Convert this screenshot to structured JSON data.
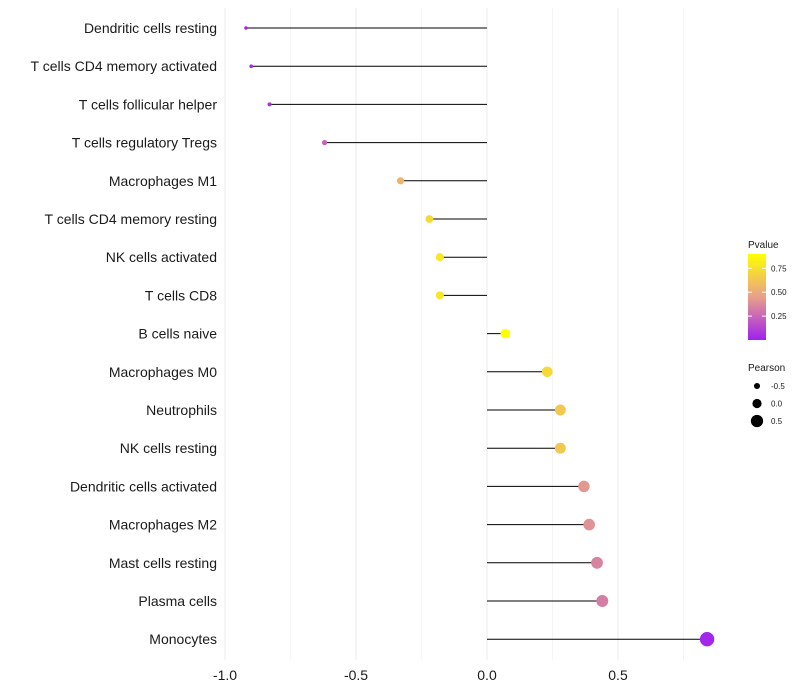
{
  "chart_data": {
    "type": "lollipop",
    "title": "",
    "xlabel": "",
    "ylabel": "",
    "xlim": [
      -1.0,
      0.85
    ],
    "xticks": [
      -1.0,
      -0.5,
      0.0,
      0.5
    ],
    "xtick_labels": [
      "-1.0",
      "-0.5",
      "0.0",
      "0.5"
    ],
    "grid": true,
    "baseline": 0,
    "categories": [
      "Dendritic cells resting",
      "T cells CD4 memory activated",
      "T cells follicular helper",
      "T cells regulatory  Tregs",
      "Macrophages M1",
      "T cells CD4 memory resting",
      "NK cells activated",
      "T cells CD8",
      "B cells naive",
      "Macrophages M0",
      "Neutrophils",
      "NK cells resting",
      "Dendritic cells activated",
      "Macrophages M2",
      "Mast cells resting",
      "Plasma cells",
      "Monocytes"
    ],
    "pearson": [
      -0.92,
      -0.9,
      -0.83,
      -0.62,
      -0.33,
      -0.22,
      -0.18,
      -0.18,
      0.07,
      0.23,
      0.28,
      0.28,
      0.37,
      0.39,
      0.42,
      0.44,
      0.84
    ],
    "pvalue": [
      0.01,
      0.03,
      0.06,
      0.25,
      0.55,
      0.72,
      0.78,
      0.78,
      0.9,
      0.72,
      0.64,
      0.64,
      0.42,
      0.4,
      0.35,
      0.33,
      0.02
    ],
    "legend": {
      "color_title": "Pvalue",
      "color_ticks": [
        0.25,
        0.5,
        0.75
      ],
      "color_tick_labels": [
        "0.25",
        "0.50",
        "0.75"
      ],
      "color_range": [
        0.0,
        0.9
      ],
      "color_low": "#a020f0",
      "color_mid": "#e8a08a",
      "color_high": "#ffff00",
      "size_title": "Pearson",
      "size_values": [
        -0.5,
        0.0,
        0.5
      ],
      "size_labels": [
        "-0.5",
        "0.0",
        "0.5"
      ],
      "placement": "right"
    }
  }
}
